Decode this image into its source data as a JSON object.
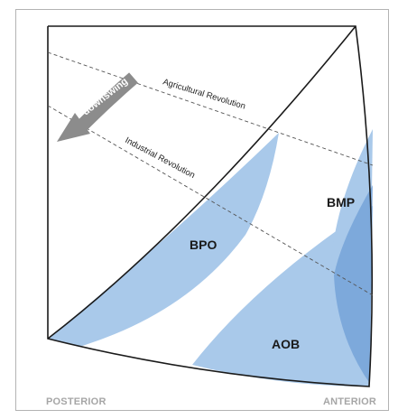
{
  "axis": {
    "posterior": "POSTERIOR",
    "anterior": "ANTERIOR"
  },
  "arrow": {
    "label": "downswing"
  },
  "revolutions": {
    "agricultural": "Agricultural Revolution",
    "industrial": "Industrial Revolution"
  },
  "regions": {
    "bpo": "BPO",
    "bmp": "BMP",
    "aob": "AOB"
  },
  "colors": {
    "light_blue": "#a9c9ea",
    "dark_blue": "#6f9dd6",
    "arrow_gray": "#8c8c8c",
    "frame_gray": "#b3b3b3"
  }
}
